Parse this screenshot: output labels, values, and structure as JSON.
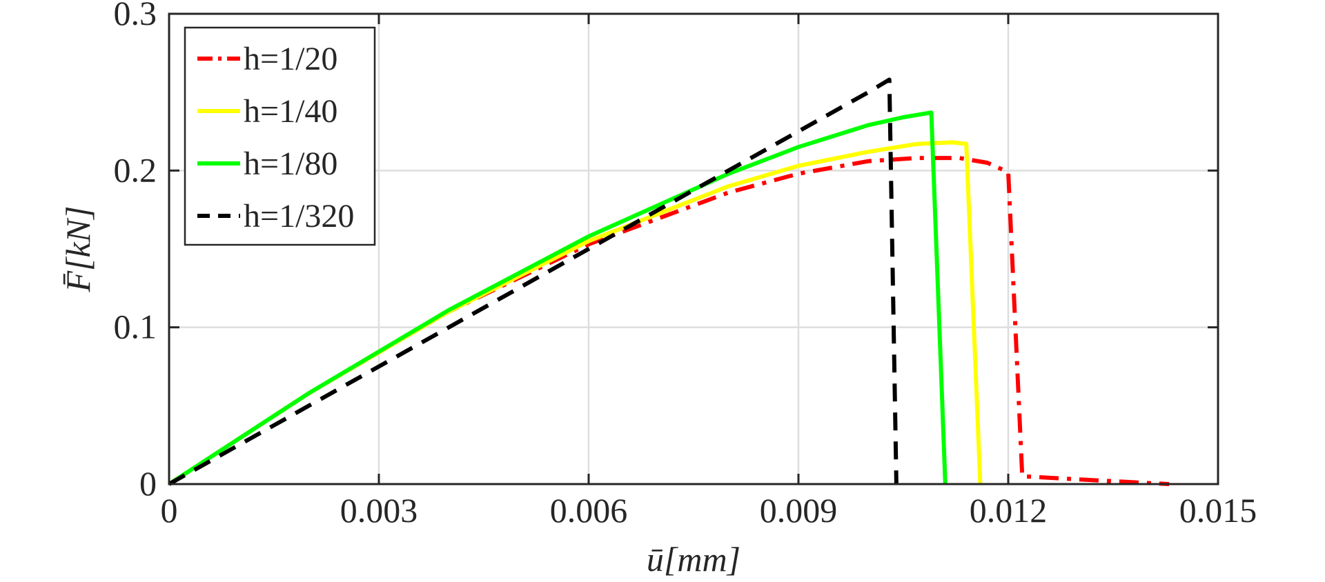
{
  "chart_data": {
    "type": "line",
    "title": "",
    "xlabel": "ū[mm]",
    "ylabel": "F̄[kN]",
    "xlim": [
      0,
      0.015
    ],
    "ylim": [
      0,
      0.3
    ],
    "xticks": [
      0,
      0.003,
      0.006,
      0.009,
      0.012,
      0.015
    ],
    "yticks": [
      0,
      0.1,
      0.2,
      0.3
    ],
    "xtick_labels": [
      "0",
      "0.003",
      "0.006",
      "0.009",
      "0.012",
      "0.015"
    ],
    "ytick_labels": [
      "0",
      "0.1",
      "0.2",
      "0.3"
    ],
    "grid": true,
    "legend_position": "top-left",
    "series": [
      {
        "name": "h=1/20",
        "color": "#ff0000",
        "dash": "dashdot",
        "points": [
          [
            0,
            0
          ],
          [
            0.002,
            0.058
          ],
          [
            0.004,
            0.11
          ],
          [
            0.006,
            0.153
          ],
          [
            0.008,
            0.186
          ],
          [
            0.009,
            0.198
          ],
          [
            0.01,
            0.206
          ],
          [
            0.0107,
            0.208
          ],
          [
            0.0113,
            0.208
          ],
          [
            0.0117,
            0.205
          ],
          [
            0.012,
            0.199
          ],
          [
            0.0122,
            0.005
          ],
          [
            0.013,
            0.003
          ],
          [
            0.0143,
            0.0
          ]
        ]
      },
      {
        "name": "h=1/40",
        "color": "#ffff00",
        "dash": "solid",
        "points": [
          [
            0,
            0
          ],
          [
            0.002,
            0.058
          ],
          [
            0.004,
            0.11
          ],
          [
            0.006,
            0.155
          ],
          [
            0.008,
            0.19
          ],
          [
            0.009,
            0.203
          ],
          [
            0.01,
            0.212
          ],
          [
            0.0107,
            0.217
          ],
          [
            0.0112,
            0.218
          ],
          [
            0.0114,
            0.217
          ],
          [
            0.0116,
            0.0
          ]
        ]
      },
      {
        "name": "h=1/80",
        "color": "#00ff00",
        "dash": "solid",
        "points": [
          [
            0,
            0
          ],
          [
            0.002,
            0.058
          ],
          [
            0.004,
            0.111
          ],
          [
            0.006,
            0.158
          ],
          [
            0.008,
            0.198
          ],
          [
            0.009,
            0.215
          ],
          [
            0.01,
            0.229
          ],
          [
            0.0105,
            0.234
          ],
          [
            0.0109,
            0.237
          ],
          [
            0.0111,
            0.0
          ]
        ]
      },
      {
        "name": "h=1/320",
        "color": "#000000",
        "dash": "dashed",
        "points": [
          [
            0,
            0
          ],
          [
            0.002,
            0.05
          ],
          [
            0.004,
            0.1
          ],
          [
            0.006,
            0.15
          ],
          [
            0.008,
            0.2
          ],
          [
            0.009,
            0.225
          ],
          [
            0.01,
            0.25
          ],
          [
            0.0103,
            0.258
          ],
          [
            0.0104,
            0.0
          ]
        ]
      }
    ]
  }
}
